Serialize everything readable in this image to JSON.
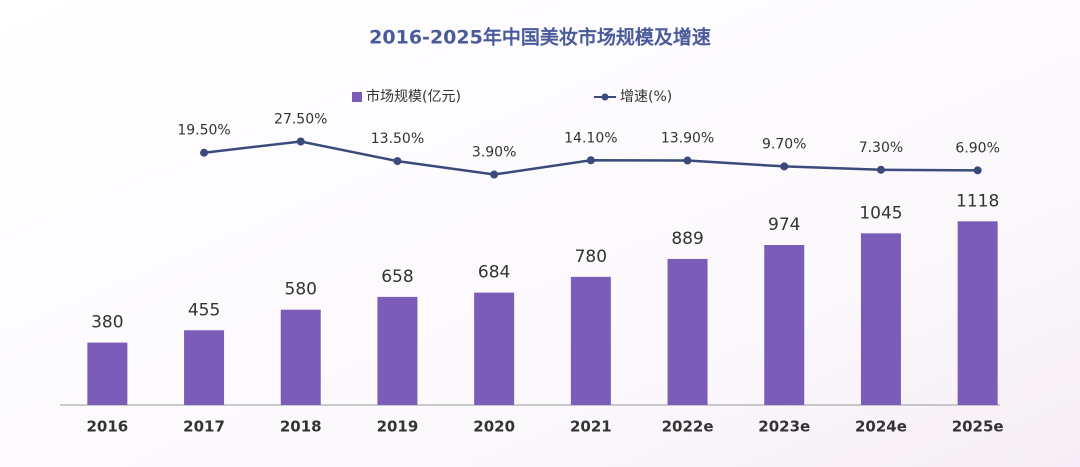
{
  "chart_data": {
    "type": "bar+line",
    "title": "2016-2025年中国美妆市场规模及增速",
    "categories": [
      "2016",
      "2017",
      "2018",
      "2019",
      "2020",
      "2021",
      "2022e",
      "2023e",
      "2024e",
      "2025e"
    ],
    "series": [
      {
        "name": "市场规模(亿元)",
        "type": "bar",
        "color": "#7b5cb8",
        "values": [
          380,
          455,
          580,
          658,
          684,
          780,
          889,
          974,
          1045,
          1118
        ]
      },
      {
        "name": "增速(%)",
        "type": "line",
        "axis": "y2",
        "color": "#3b4a7a",
        "values": [
          null,
          19.5,
          27.5,
          13.5,
          3.9,
          14.1,
          13.9,
          9.7,
          7.3,
          6.9
        ],
        "value_labels": [
          null,
          "19.50%",
          "27.50%",
          "13.50%",
          "3.90%",
          "14.10%",
          "13.90%",
          "9.70%",
          "7.30%",
          "6.90%"
        ]
      }
    ],
    "ylim": [
      0,
      1400
    ],
    "y2lim": [
      0,
      30
    ],
    "legend": "top"
  }
}
